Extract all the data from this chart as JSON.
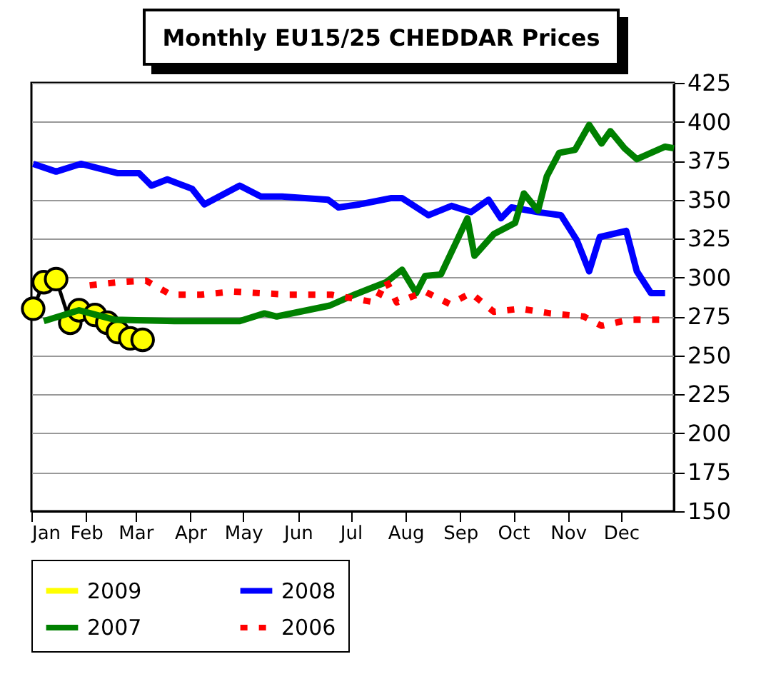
{
  "chart_data": {
    "type": "line",
    "title": "Monthly EU15/25 CHEDDAR Prices",
    "xlim": [
      "--01-01",
      "--12-31"
    ],
    "xticks": [
      {
        "value": "--01-01",
        "label": "Jan"
      },
      {
        "value": "--02-01",
        "label": "Feb"
      },
      {
        "value": "--03-01",
        "label": "Mar"
      },
      {
        "value": "--04-01",
        "label": "Apr"
      },
      {
        "value": "--05-01",
        "label": "May"
      },
      {
        "value": "--06-01",
        "label": "Jun"
      },
      {
        "value": "--07-01",
        "label": "Jul"
      },
      {
        "value": "--08-01",
        "label": "Aug"
      },
      {
        "value": "--09-01",
        "label": "Sep"
      },
      {
        "value": "--10-01",
        "label": "Oct"
      },
      {
        "value": "--11-01",
        "label": "Nov"
      },
      {
        "value": "--12-01",
        "label": "Dec"
      }
    ],
    "ylim": [
      150,
      425
    ],
    "yticks": [
      150,
      175,
      200,
      225,
      250,
      275,
      300,
      325,
      350,
      375,
      400,
      425
    ],
    "grid": "y",
    "legend": "bottom",
    "series": [
      {
        "name": "2009",
        "color": "#ffff00",
        "marker": "circle",
        "x": [
          "--01-02",
          "--01-08",
          "--01-15",
          "--01-23",
          "--01-28",
          "--02-06",
          "--02-13",
          "--02-19",
          "--02-26",
          "--03-05"
        ],
        "values": [
          280,
          297,
          299,
          271,
          279,
          276,
          271,
          265,
          261,
          260
        ]
      },
      {
        "name": "2008",
        "color": "#0000ff",
        "x": [
          "--01-02",
          "--01-15",
          "--01-29",
          "--02-19",
          "--03-03",
          "--03-10",
          "--03-19",
          "--04-02",
          "--04-09",
          "--04-29",
          "--05-11",
          "--05-23",
          "--06-18",
          "--06-24",
          "--07-06",
          "--07-24",
          "--07-30",
          "--08-14",
          "--08-27",
          "--09-07",
          "--09-17",
          "--09-24",
          "--09-30",
          "--10-15",
          "--10-28",
          "--11-06",
          "--11-13",
          "--11-19",
          "--12-04",
          "--12-10",
          "--12-18",
          "--12-26"
        ],
        "values": [
          373,
          368,
          373,
          367,
          367,
          359,
          363,
          357,
          347,
          359,
          352,
          352,
          350,
          345,
          347,
          351,
          351,
          340,
          346,
          342,
          350,
          338,
          345,
          342,
          340,
          324,
          304,
          326,
          330,
          304,
          290,
          290
        ]
      },
      {
        "name": "2007",
        "color": "#008000",
        "x": [
          "--01-08",
          "--01-28",
          "--02-17",
          "--03-23",
          "--04-29",
          "--05-13",
          "--05-20",
          "--06-19",
          "--07-03",
          "--07-21",
          "--07-30",
          "--08-07",
          "--08-12",
          "--08-21",
          "--09-05",
          "--09-09",
          "--09-20",
          "--10-02",
          "--10-07",
          "--10-15",
          "--10-20",
          "--10-27",
          "--11-05",
          "--11-13",
          "--11-20",
          "--11-25",
          "--12-03",
          "--12-10",
          "--12-26",
          "--12-31"
        ],
        "values": [
          272,
          279,
          273,
          272,
          272,
          277,
          275,
          282,
          289,
          297,
          305,
          290,
          301,
          302,
          338,
          314,
          328,
          335,
          354,
          343,
          365,
          380,
          382,
          398,
          386,
          394,
          383,
          376,
          384,
          383
        ]
      },
      {
        "name": "2006",
        "color": "#ff0000",
        "line_style": "dotted",
        "x": [
          "--02-03",
          "--02-19",
          "--03-07",
          "--03-21",
          "--04-07",
          "--04-25",
          "--05-11",
          "--05-27",
          "--06-20",
          "--07-15",
          "--07-21",
          "--07-27",
          "--08-12",
          "--08-26",
          "--09-07",
          "--09-20",
          "--10-05",
          "--10-22",
          "--11-10",
          "--11-20",
          "--12-06",
          "--12-24"
        ],
        "values": [
          295,
          297,
          298,
          289,
          289,
          291,
          290,
          289,
          289,
          284,
          298,
          284,
          291,
          283,
          290,
          278,
          280,
          277,
          275,
          269,
          273,
          273
        ]
      }
    ]
  }
}
